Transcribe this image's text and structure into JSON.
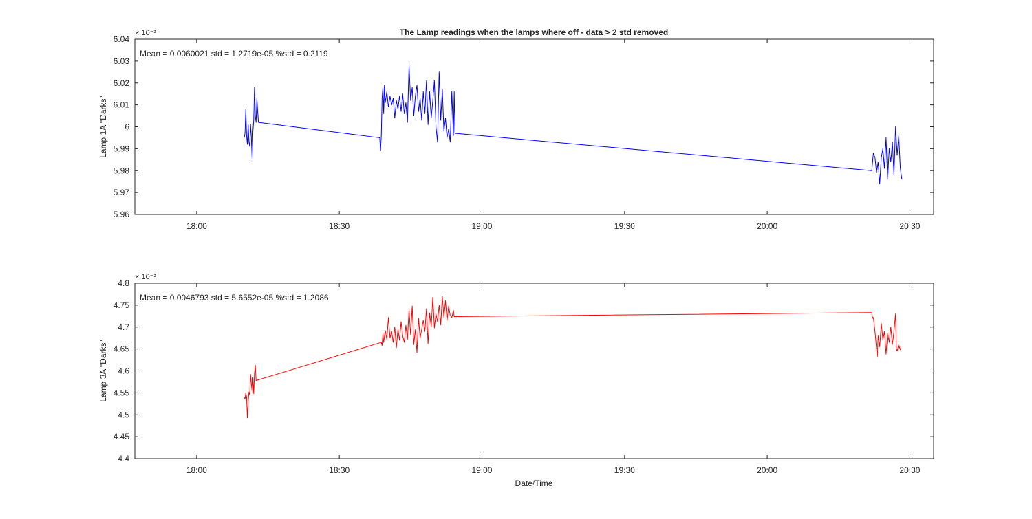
{
  "figure": {
    "background": "#ffffff",
    "axis_color": "#262626",
    "grid": false,
    "xlabel": "Date/Time"
  },
  "chart_data": [
    {
      "type": "line",
      "title": "The Lamp readings when the lamps where off - data > 2 std removed",
      "ylabel": "Lamp 1A \"Darks\"",
      "ylim": [
        0.00596,
        0.00604
      ],
      "x_range": [
        "17:47",
        "20:35"
      ],
      "y_exponent": "× 10⁻³",
      "annotation": "Mean = 0.0060021  std = 1.2719e-05  %std = 0.2119",
      "x_ticks": [
        "18:00",
        "18:30",
        "19:00",
        "19:30",
        "20:00",
        "20:30"
      ],
      "y_ticks": [
        "5.96",
        "5.97",
        "5.98",
        "5.99",
        "6",
        "6.01",
        "6.02",
        "6.03",
        "6.04"
      ],
      "y_tick_values": [
        0.00596,
        0.00597,
        0.00598,
        0.00599,
        0.006,
        0.00601,
        0.00602,
        0.00603,
        0.00604
      ],
      "series": [
        {
          "color": "#0000ff",
          "points": [
            [
              "18:10:00",
              0.005995
            ],
            [
              "18:10:10",
              0.005997
            ],
            [
              "18:10:20",
              0.006008
            ],
            [
              "18:10:30",
              0.005996
            ],
            [
              "18:10:40",
              0.005992
            ],
            [
              "18:10:50",
              0.006001
            ],
            [
              "18:11:00",
              0.005993
            ],
            [
              "18:11:10",
              0.005991
            ],
            [
              "18:11:20",
              0.006001
            ],
            [
              "18:11:30",
              0.005995
            ],
            [
              "18:11:40",
              0.005985
            ],
            [
              "18:11:50",
              0.005998
            ],
            [
              "18:12:00",
              0.006003
            ],
            [
              "18:12:10",
              0.006018
            ],
            [
              "18:12:20",
              0.006005
            ],
            [
              "18:12:30",
              0.006002
            ],
            [
              "18:12:40",
              0.006013
            ],
            [
              "18:12:50",
              0.006007
            ],
            [
              "18:13:00",
              0.006002
            ],
            [
              "18:38:30",
              0.005995
            ],
            [
              "18:38:40",
              0.005989
            ],
            [
              "18:38:50",
              0.005996
            ],
            [
              "18:39:00",
              0.006013
            ],
            [
              "18:39:10",
              0.006018
            ],
            [
              "18:39:20",
              0.006006
            ],
            [
              "18:39:30",
              0.006019
            ],
            [
              "18:39:40",
              0.006011
            ],
            [
              "18:40:00",
              0.006016
            ],
            [
              "18:40:20",
              0.006009
            ],
            [
              "18:40:40",
              0.006014
            ],
            [
              "18:41:00",
              0.00601
            ],
            [
              "18:41:20",
              0.006013
            ],
            [
              "18:41:40",
              0.006004
            ],
            [
              "18:42:00",
              0.006012
            ],
            [
              "18:42:20",
              0.006008
            ],
            [
              "18:42:40",
              0.006014
            ],
            [
              "18:43:00",
              0.006007
            ],
            [
              "18:43:20",
              0.006015
            ],
            [
              "18:43:40",
              0.006006
            ],
            [
              "18:44:00",
              0.006011
            ],
            [
              "18:44:20",
              0.006002
            ],
            [
              "18:44:40",
              0.006028
            ],
            [
              "18:45:00",
              0.006012
            ],
            [
              "18:45:20",
              0.006018
            ],
            [
              "18:45:40",
              0.006005
            ],
            [
              "18:46:00",
              0.006014
            ],
            [
              "18:46:20",
              0.006019
            ],
            [
              "18:46:40",
              0.006007
            ],
            [
              "18:47:00",
              0.006013
            ],
            [
              "18:47:20",
              0.006003
            ],
            [
              "18:47:40",
              0.006016
            ],
            [
              "18:48:00",
              0.006006
            ],
            [
              "18:48:20",
              0.006021
            ],
            [
              "18:48:40",
              0.006001
            ],
            [
              "18:49:00",
              0.006016
            ],
            [
              "18:49:20",
              0.006004
            ],
            [
              "18:49:40",
              0.006012
            ],
            [
              "18:50:00",
              0.006021
            ],
            [
              "18:50:20",
              0.006
            ],
            [
              "18:50:40",
              0.005993
            ],
            [
              "18:51:00",
              0.006025
            ],
            [
              "18:51:20",
              0.006003
            ],
            [
              "18:51:40",
              0.006017
            ],
            [
              "18:52:00",
              0.005998
            ],
            [
              "18:52:20",
              0.006004
            ],
            [
              "18:52:40",
              0.005995
            ],
            [
              "18:53:00",
              0.005999
            ],
            [
              "18:53:20",
              0.005993
            ],
            [
              "18:53:40",
              0.006016
            ],
            [
              "18:54:00",
              0.005996
            ],
            [
              "18:54:10",
              0.006016
            ],
            [
              "18:54:20",
              0.005997
            ],
            [
              "20:22:00",
              0.00598
            ],
            [
              "20:22:20",
              0.005988
            ],
            [
              "20:22:40",
              0.005986
            ],
            [
              "20:23:00",
              0.005979
            ],
            [
              "20:23:20",
              0.005984
            ],
            [
              "20:23:40",
              0.005974
            ],
            [
              "20:24:00",
              0.005986
            ],
            [
              "20:24:20",
              0.00599
            ],
            [
              "20:24:40",
              0.005981
            ],
            [
              "20:25:00",
              0.005995
            ],
            [
              "20:25:20",
              0.005976
            ],
            [
              "20:25:40",
              0.00599
            ],
            [
              "20:26:00",
              0.005984
            ],
            [
              "20:26:20",
              0.005993
            ],
            [
              "20:26:40",
              0.005978
            ],
            [
              "20:27:00",
              0.006
            ],
            [
              "20:27:20",
              0.005987
            ],
            [
              "20:27:40",
              0.005996
            ],
            [
              "20:28:00",
              0.005981
            ],
            [
              "20:28:20",
              0.005976
            ]
          ]
        }
      ]
    },
    {
      "type": "line",
      "title": "",
      "ylabel": "Lamp 3A \"Darks\"",
      "ylim": [
        0.0044,
        0.0048
      ],
      "x_range": [
        "17:47",
        "20:35"
      ],
      "y_exponent": "× 10⁻³",
      "annotation": "Mean = 0.0046793  std = 5.6552e-05  %std = 1.2086",
      "x_ticks": [
        "18:00",
        "18:30",
        "19:00",
        "19:30",
        "20:00",
        "20:30"
      ],
      "y_ticks": [
        "4.4",
        "4.45",
        "4.5",
        "4.55",
        "4.6",
        "4.65",
        "4.7",
        "4.75",
        "4.8"
      ],
      "y_tick_values": [
        0.0044,
        0.00445,
        0.0045,
        0.00455,
        0.0046,
        0.00465,
        0.0047,
        0.00475,
        0.0048
      ],
      "series": [
        {
          "color": "#ff0000",
          "points": [
            [
              "18:10:00",
              0.00454
            ],
            [
              "18:10:10",
              0.004535
            ],
            [
              "18:10:20",
              0.00455
            ],
            [
              "18:10:30",
              0.00454
            ],
            [
              "18:10:40",
              0.004493
            ],
            [
              "18:10:50",
              0.00453
            ],
            [
              "18:11:00",
              0.004552
            ],
            [
              "18:11:10",
              0.004545
            ],
            [
              "18:11:20",
              0.004592
            ],
            [
              "18:11:30",
              0.00457
            ],
            [
              "18:11:40",
              0.004552
            ],
            [
              "18:11:50",
              0.004585
            ],
            [
              "18:12:00",
              0.004548
            ],
            [
              "18:12:10",
              0.004595
            ],
            [
              "18:12:20",
              0.004613
            ],
            [
              "18:12:30",
              0.004578
            ],
            [
              "18:38:50",
              0.004665
            ],
            [
              "18:39:00",
              0.004658
            ],
            [
              "18:39:10",
              0.004685
            ],
            [
              "18:39:20",
              0.004665
            ],
            [
              "18:39:40",
              0.004692
            ],
            [
              "18:40:00",
              0.004672
            ],
            [
              "18:40:20",
              0.004722
            ],
            [
              "18:40:40",
              0.004675
            ],
            [
              "18:41:00",
              0.00469
            ],
            [
              "18:41:20",
              0.004665
            ],
            [
              "18:41:40",
              0.0047
            ],
            [
              "18:42:00",
              0.004653
            ],
            [
              "18:42:20",
              0.004695
            ],
            [
              "18:42:40",
              0.00467
            ],
            [
              "18:43:00",
              0.004712
            ],
            [
              "18:43:20",
              0.00468
            ],
            [
              "18:43:40",
              0.004665
            ],
            [
              "18:44:00",
              0.004704
            ],
            [
              "18:44:20",
              0.004672
            ],
            [
              "18:44:40",
              0.00474
            ],
            [
              "18:45:00",
              0.004682
            ],
            [
              "18:45:20",
              0.004748
            ],
            [
              "18:45:40",
              0.00466
            ],
            [
              "18:46:00",
              0.004694
            ],
            [
              "18:46:20",
              0.004642
            ],
            [
              "18:46:40",
              0.00472
            ],
            [
              "18:47:00",
              0.004675
            ],
            [
              "18:47:20",
              0.004695
            ],
            [
              "18:47:40",
              0.004715
            ],
            [
              "18:48:00",
              0.00469
            ],
            [
              "18:48:20",
              0.004742
            ],
            [
              "18:48:40",
              0.004662
            ],
            [
              "18:49:00",
              0.004732
            ],
            [
              "18:49:20",
              0.0047
            ],
            [
              "18:49:40",
              0.004768
            ],
            [
              "18:50:00",
              0.004698
            ],
            [
              "18:50:20",
              0.00473
            ],
            [
              "18:50:40",
              0.004712
            ],
            [
              "18:51:00",
              0.00475
            ],
            [
              "18:51:20",
              0.004705
            ],
            [
              "18:51:40",
              0.00477
            ],
            [
              "18:52:00",
              0.004722
            ],
            [
              "18:52:20",
              0.00476
            ],
            [
              "18:52:40",
              0.004715
            ],
            [
              "18:53:00",
              0.004748
            ],
            [
              "18:53:20",
              0.004726
            ],
            [
              "18:53:40",
              0.004722
            ],
            [
              "18:54:00",
              0.004738
            ],
            [
              "18:54:10",
              0.004724
            ],
            [
              "20:22:00",
              0.004733
            ],
            [
              "20:22:10",
              0.00472
            ],
            [
              "20:22:20",
              0.004722
            ],
            [
              "20:22:40",
              0.00469
            ],
            [
              "20:23:00",
              0.00465
            ],
            [
              "20:23:10",
              0.004632
            ],
            [
              "20:23:20",
              0.00468
            ],
            [
              "20:23:40",
              0.004655
            ],
            [
              "20:24:00",
              0.004708
            ],
            [
              "20:24:20",
              0.00467
            ],
            [
              "20:24:40",
              0.00469
            ],
            [
              "20:25:00",
              0.004638
            ],
            [
              "20:25:20",
              0.004686
            ],
            [
              "20:25:40",
              0.004665
            ],
            [
              "20:26:00",
              0.0047
            ],
            [
              "20:26:20",
              0.00466
            ],
            [
              "20:26:40",
              0.00469
            ],
            [
              "20:27:00",
              0.00473
            ],
            [
              "20:27:10",
              0.00465
            ],
            [
              "20:27:20",
              0.004645
            ],
            [
              "20:27:40",
              0.00466
            ],
            [
              "20:28:00",
              0.004648
            ],
            [
              "20:28:10",
              0.004655
            ]
          ]
        }
      ]
    }
  ]
}
